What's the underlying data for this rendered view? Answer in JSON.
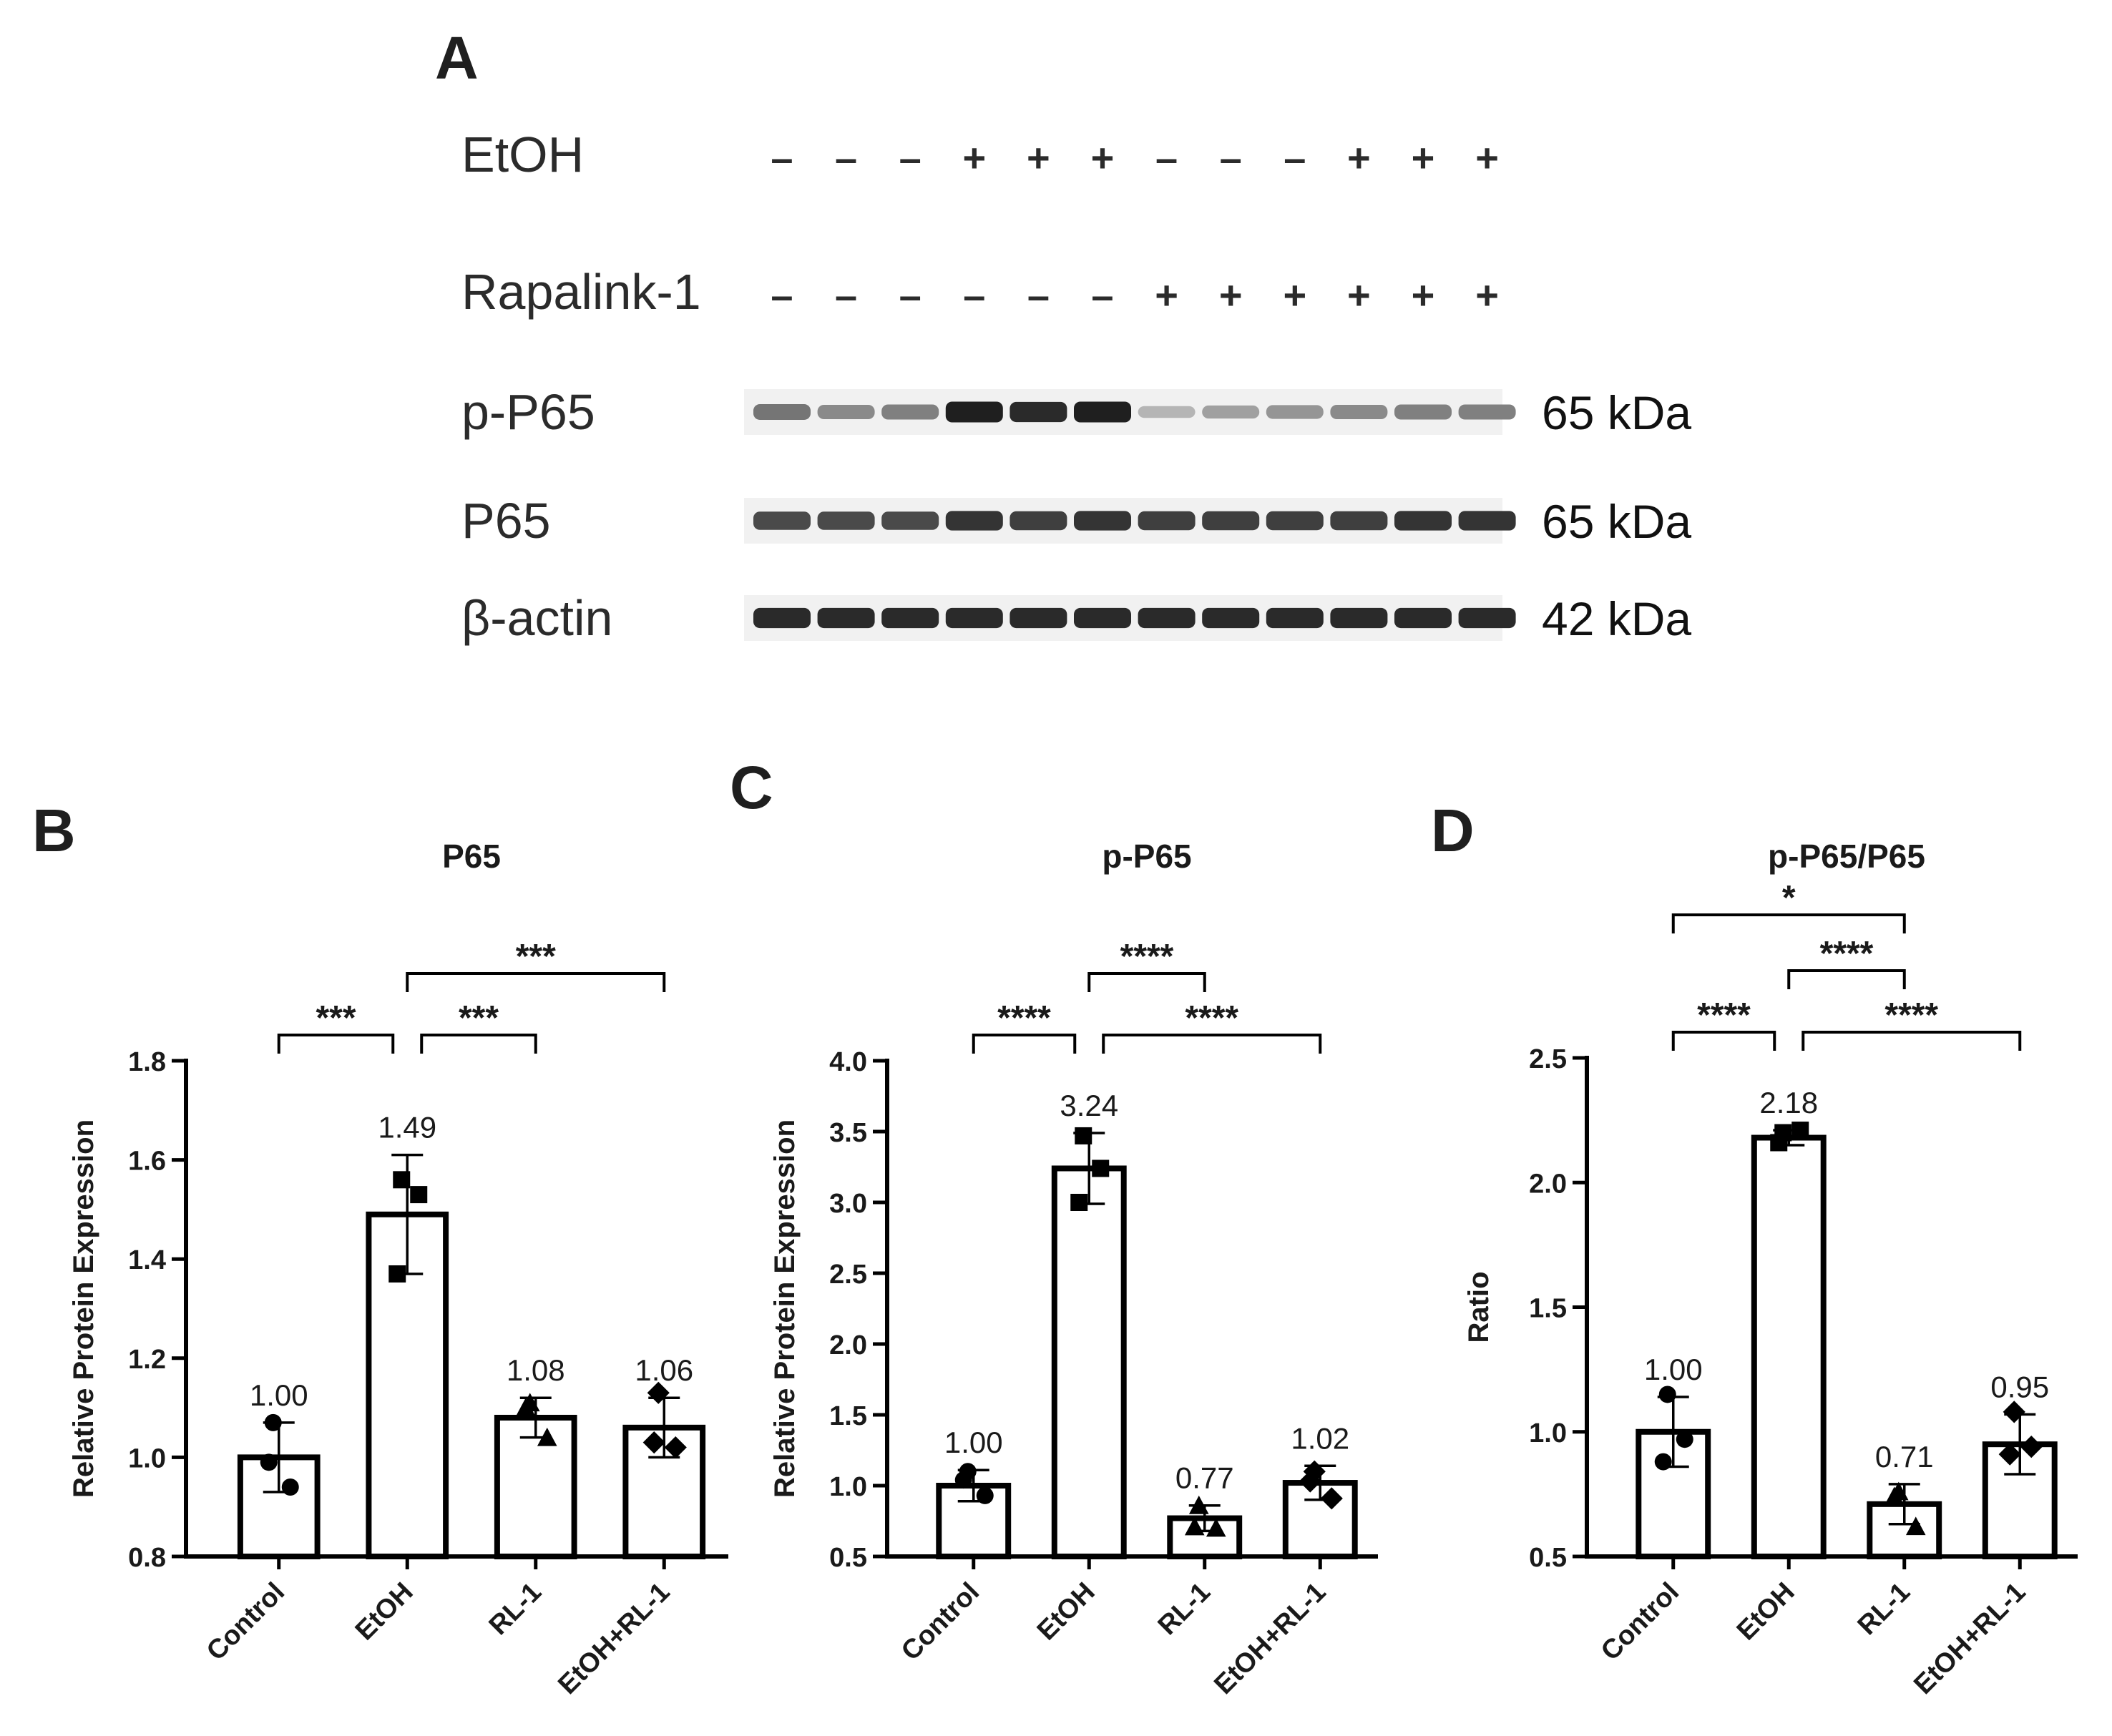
{
  "panel_a": {
    "label": "A",
    "treatments": [
      {
        "name": "EtOH",
        "signs": [
          "–",
          "–",
          "–",
          "+",
          "+",
          "+",
          "–",
          "–",
          "–",
          "+",
          "+",
          "+"
        ]
      },
      {
        "name": "Rapalink-1",
        "signs": [
          "–",
          "–",
          "–",
          "–",
          "–",
          "–",
          "+",
          "+",
          "+",
          "+",
          "+",
          "+"
        ]
      }
    ],
    "blots": [
      {
        "name": "p-P65",
        "size": "65 kDa",
        "intensity": [
          0.55,
          0.45,
          0.5,
          0.95,
          0.9,
          0.95,
          0.25,
          0.35,
          0.4,
          0.45,
          0.5,
          0.5
        ]
      },
      {
        "name": "P65",
        "size": "65 kDa",
        "intensity": [
          0.75,
          0.75,
          0.75,
          0.85,
          0.8,
          0.85,
          0.8,
          0.8,
          0.8,
          0.8,
          0.85,
          0.85
        ]
      },
      {
        "name": "β-actin",
        "size": "42 kDa",
        "intensity": [
          0.9,
          0.9,
          0.9,
          0.9,
          0.9,
          0.9,
          0.9,
          0.9,
          0.9,
          0.9,
          0.9,
          0.9
        ]
      }
    ]
  },
  "chart_data": [
    {
      "panel": "B",
      "type": "bar",
      "title": "P65",
      "ylabel": "Relative Protein Expression",
      "xlabel": "",
      "categories": [
        "Control",
        "EtOH",
        "RL-1",
        "EtOH+RL-1"
      ],
      "values": [
        1.0,
        1.49,
        1.08,
        1.06
      ],
      "value_labels": [
        "1.00",
        "1.49",
        "1.08",
        "1.06"
      ],
      "error": [
        0.07,
        0.12,
        0.04,
        0.06
      ],
      "points": [
        [
          1.07,
          0.94,
          0.99
        ],
        [
          1.56,
          1.53,
          1.37
        ],
        [
          1.11,
          1.04,
          1.1
        ],
        [
          1.13,
          1.02,
          1.03
        ]
      ],
      "markers": [
        "circle",
        "square",
        "triangle",
        "diamond"
      ],
      "ylim": [
        0.8,
        1.8
      ],
      "yticks": [
        "0.8",
        "1.0",
        "1.2",
        "1.4",
        "1.6",
        "1.8"
      ],
      "yticks_values": [
        0.8,
        1.0,
        1.2,
        1.4,
        1.6,
        1.8
      ],
      "significance": [
        {
          "from": 0,
          "to": 1,
          "label": "***",
          "level": 0
        },
        {
          "from": 1,
          "to": 2,
          "label": "***",
          "level": 0
        },
        {
          "from": 1,
          "to": 3,
          "label": "***",
          "level": 1
        }
      ]
    },
    {
      "panel": "C",
      "type": "bar",
      "title": "p-P65",
      "ylabel": "Relative Protein Expression",
      "xlabel": "",
      "categories": [
        "Control",
        "EtOH",
        "RL-1",
        "EtOH+RL-1"
      ],
      "values": [
        1.0,
        3.24,
        0.77,
        1.02
      ],
      "value_labels": [
        "1.00",
        "3.24",
        "0.77",
        "1.02"
      ],
      "error": [
        0.11,
        0.25,
        0.09,
        0.12
      ],
      "points": [
        [
          1.1,
          0.93,
          1.04
        ],
        [
          3.47,
          3.24,
          3.0
        ],
        [
          0.86,
          0.7,
          0.71
        ],
        [
          1.1,
          0.91,
          1.03
        ]
      ],
      "markers": [
        "circle",
        "square",
        "triangle",
        "diamond"
      ],
      "ylim": [
        0.5,
        4.0
      ],
      "yticks": [
        "0.5",
        "1.0",
        "1.5",
        "2.0",
        "2.5",
        "3.0",
        "3.5",
        "4.0"
      ],
      "yticks_values": [
        0.5,
        1.0,
        1.5,
        2.0,
        2.5,
        3.0,
        3.5,
        4.0
      ],
      "significance": [
        {
          "from": 0,
          "to": 1,
          "label": "****",
          "level": 0
        },
        {
          "from": 1,
          "to": 3,
          "label": "****",
          "level": 0
        },
        {
          "from": 1,
          "to": 2,
          "label": "****",
          "level": 1
        }
      ]
    },
    {
      "panel": "D",
      "type": "bar",
      "title": "p-P65/P65",
      "ylabel": "Ratio",
      "xlabel": "",
      "categories": [
        "Control",
        "EtOH",
        "RL-1",
        "EtOH+RL-1"
      ],
      "values": [
        1.0,
        2.18,
        0.71,
        0.95
      ],
      "value_labels": [
        "1.00",
        "2.18",
        "0.71",
        "0.95"
      ],
      "error": [
        0.14,
        0.03,
        0.08,
        0.12
      ],
      "points": [
        [
          1.15,
          0.97,
          0.88
        ],
        [
          2.2,
          2.21,
          2.16
        ],
        [
          0.76,
          0.62,
          0.74
        ],
        [
          1.08,
          0.94,
          0.91
        ]
      ],
      "markers": [
        "circle",
        "square",
        "triangle",
        "diamond"
      ],
      "ylim": [
        0.5,
        2.5
      ],
      "yticks": [
        "0.5",
        "1.0",
        "1.5",
        "2.0",
        "2.5"
      ],
      "yticks_values": [
        0.5,
        1.0,
        1.5,
        2.0,
        2.5
      ],
      "significance": [
        {
          "from": 0,
          "to": 1,
          "label": "****",
          "level": 0
        },
        {
          "from": 1,
          "to": 3,
          "label": "****",
          "level": 0
        },
        {
          "from": 1,
          "to": 2,
          "label": "****",
          "level": 1
        },
        {
          "from": 0,
          "to": 2,
          "label": "*",
          "level": 2
        }
      ]
    }
  ]
}
